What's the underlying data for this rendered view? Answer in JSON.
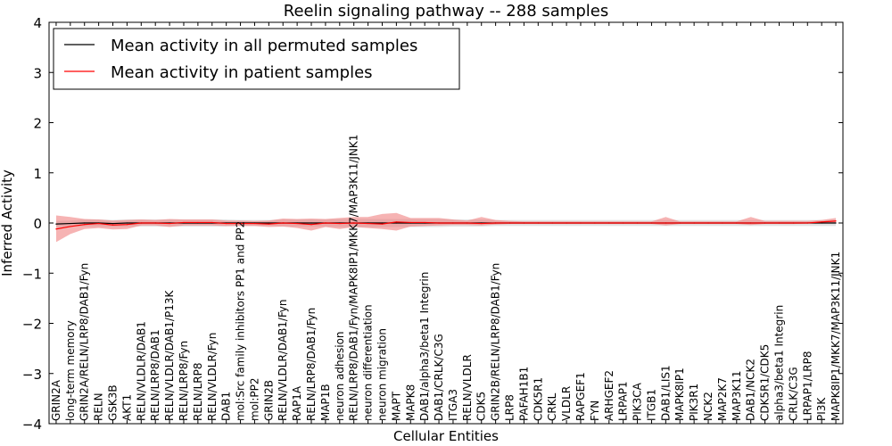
{
  "chart_data": {
    "type": "line",
    "title": "Reelin signaling pathway -- 288 samples",
    "xlabel": "Cellular Entities",
    "ylabel": "Inferred Activity",
    "ylim": [
      -4,
      4
    ],
    "yticks": [
      -4,
      -3,
      -2,
      -1,
      0,
      1,
      2,
      3,
      4
    ],
    "ytick_labels": [
      "−4",
      "−3",
      "−2",
      "−1",
      "0",
      "1",
      "2",
      "3",
      "4"
    ],
    "categories": [
      "GRIN2A",
      "long-term memory",
      "GRIN2A/RELN/LRP8/DAB1/Fyn",
      "RELN",
      "GSK3B",
      "AKT1",
      "RELN/VLDLR/DAB1",
      "RELN/LRP8/DAB1",
      "RELN/VLDLR/DAB1/P13K",
      "RELN/LRP8/Fyn",
      "RELN/LRP8",
      "RELN/VLDLR/Fyn",
      "DAB1",
      "mol:Src family inhibitors PP1 and PP2",
      "mol:PP2",
      "GRIN2B",
      "RELN/VLDLR/DAB1/Fyn",
      "RAP1A",
      "RELN/LRP8/DAB1/Fyn",
      "MAP1B",
      "neuron adhesion",
      "RELN/LRP8/DAB1/Fyn/MAPK8IP1/MKK7/MAP3K11/JNK1",
      "neuron differentiation",
      "neuron migration",
      "MAPT",
      "MAPK8",
      "DAB1/alpha3/beta1 Integrin",
      "DAB1/CRLK/C3G",
      "ITGA3",
      "RELN/VLDLR",
      "CDK5",
      "GRIN2B/RELN/LRP8/DAB1/Fyn",
      "LRP8",
      "PAFAH1B1",
      "CDK5R1",
      "CRKL",
      "VLDLR",
      "RAPGEF1",
      "FYN",
      "ARHGEF2",
      "LRPAP1",
      "PIK3CA",
      "ITGB1",
      "DAB1/LIS1",
      "MAPK8IP1",
      "PIK3R1",
      "NCK2",
      "MAP2K7",
      "MAP3K11",
      "DAB1/NCK2",
      "CDK5R1/CDK5",
      "alpha3/beta1 Integrin",
      "CRLK/C3G",
      "LRPAP1/LRP8",
      "PI3K",
      "MAPK8IP1/MKK7/MAP3K11/JNK1"
    ],
    "series": [
      {
        "name": "Mean activity in all permuted samples",
        "color": "#000000",
        "band_color": "#bfbfbf",
        "values": [
          -0.02,
          -0.01,
          0,
          0,
          -0.01,
          0,
          0,
          0,
          0,
          0,
          0,
          0,
          0,
          0,
          0,
          0,
          0,
          0,
          0,
          0,
          0,
          0,
          0,
          0,
          0,
          0,
          0,
          0,
          0,
          0,
          0,
          0,
          0,
          0,
          0,
          0,
          0,
          0,
          0,
          0,
          0,
          0,
          0,
          0,
          0,
          0,
          0,
          0,
          0,
          0,
          0,
          0,
          0,
          0,
          0,
          0
        ],
        "band_lower": [
          -0.08,
          -0.07,
          -0.07,
          -0.07,
          -0.08,
          -0.07,
          -0.07,
          -0.07,
          -0.07,
          -0.07,
          -0.07,
          -0.07,
          -0.07,
          -0.06,
          -0.06,
          -0.06,
          -0.07,
          -0.07,
          -0.07,
          -0.07,
          -0.08,
          -0.08,
          -0.08,
          -0.08,
          -0.08,
          -0.08,
          -0.08,
          -0.08,
          -0.07,
          -0.07,
          -0.07,
          -0.06,
          -0.06,
          -0.06,
          -0.06,
          -0.06,
          -0.06,
          -0.06,
          -0.06,
          -0.06,
          -0.06,
          -0.06,
          -0.06,
          -0.06,
          -0.06,
          -0.06,
          -0.06,
          -0.06,
          -0.06,
          -0.06,
          -0.06,
          -0.06,
          -0.06,
          -0.06,
          -0.06,
          -0.06
        ],
        "band_upper": [
          0.04,
          0.05,
          0.07,
          0.07,
          0.06,
          0.07,
          0.07,
          0.07,
          0.07,
          0.07,
          0.07,
          0.07,
          0.07,
          0.06,
          0.06,
          0.06,
          0.07,
          0.07,
          0.07,
          0.07,
          0.08,
          0.08,
          0.08,
          0.08,
          0.08,
          0.08,
          0.08,
          0.08,
          0.07,
          0.07,
          0.07,
          0.06,
          0.06,
          0.06,
          0.06,
          0.06,
          0.06,
          0.06,
          0.06,
          0.06,
          0.06,
          0.06,
          0.06,
          0.06,
          0.06,
          0.06,
          0.06,
          0.06,
          0.06,
          0.06,
          0.06,
          0.06,
          0.06,
          0.06,
          0.06,
          0.06
        ]
      },
      {
        "name": "Mean activity in patient samples",
        "color": "#ff0000",
        "band_color": "#f08080",
        "values": [
          -0.12,
          -0.07,
          -0.03,
          -0.01,
          -0.04,
          -0.03,
          0,
          0,
          -0.01,
          0.01,
          0.01,
          0.01,
          -0.01,
          -0.01,
          -0.01,
          -0.02,
          0,
          -0.01,
          -0.03,
          0,
          -0.01,
          0,
          -0.01,
          -0.02,
          0.02,
          0.01,
          0.01,
          0,
          0,
          0,
          -0.01,
          0,
          0,
          0,
          0,
          0,
          0,
          0,
          0,
          0,
          0,
          0,
          0,
          0,
          0,
          0,
          0,
          0,
          0,
          0,
          0,
          0,
          0,
          0,
          0.02,
          0.04
        ],
        "band_lower": [
          -0.38,
          -0.22,
          -0.12,
          -0.1,
          -0.13,
          -0.12,
          -0.05,
          -0.05,
          -0.08,
          -0.05,
          -0.05,
          -0.05,
          -0.06,
          -0.06,
          -0.06,
          -0.08,
          -0.07,
          -0.1,
          -0.15,
          -0.08,
          -0.12,
          -0.08,
          -0.1,
          -0.12,
          -0.15,
          -0.07,
          -0.06,
          -0.05,
          -0.04,
          -0.04,
          -0.05,
          -0.03,
          -0.02,
          -0.02,
          -0.02,
          -0.02,
          -0.02,
          -0.02,
          -0.02,
          -0.02,
          -0.02,
          -0.02,
          -0.02,
          -0.05,
          -0.02,
          -0.02,
          -0.02,
          -0.02,
          -0.02,
          -0.04,
          -0.02,
          -0.02,
          -0.02,
          -0.01,
          0,
          0.01
        ],
        "band_upper": [
          0.15,
          0.12,
          0.08,
          0.07,
          0.05,
          0.06,
          0.07,
          0.06,
          0.08,
          0.07,
          0.07,
          0.07,
          0.05,
          0.05,
          0.04,
          0.05,
          0.09,
          0.08,
          0.09,
          0.08,
          0.1,
          0.12,
          0.12,
          0.18,
          0.2,
          0.1,
          0.1,
          0.1,
          0.07,
          0.05,
          0.12,
          0.06,
          0.04,
          0.03,
          0.03,
          0.03,
          0.03,
          0.03,
          0.03,
          0.03,
          0.03,
          0.03,
          0.03,
          0.12,
          0.03,
          0.03,
          0.03,
          0.03,
          0.03,
          0.12,
          0.04,
          0.04,
          0.04,
          0.04,
          0.06,
          0.1
        ]
      }
    ],
    "legend": {
      "placement": "top-left",
      "entries": [
        "Mean activity in all permuted samples",
        "Mean activity in patient samples"
      ]
    }
  }
}
